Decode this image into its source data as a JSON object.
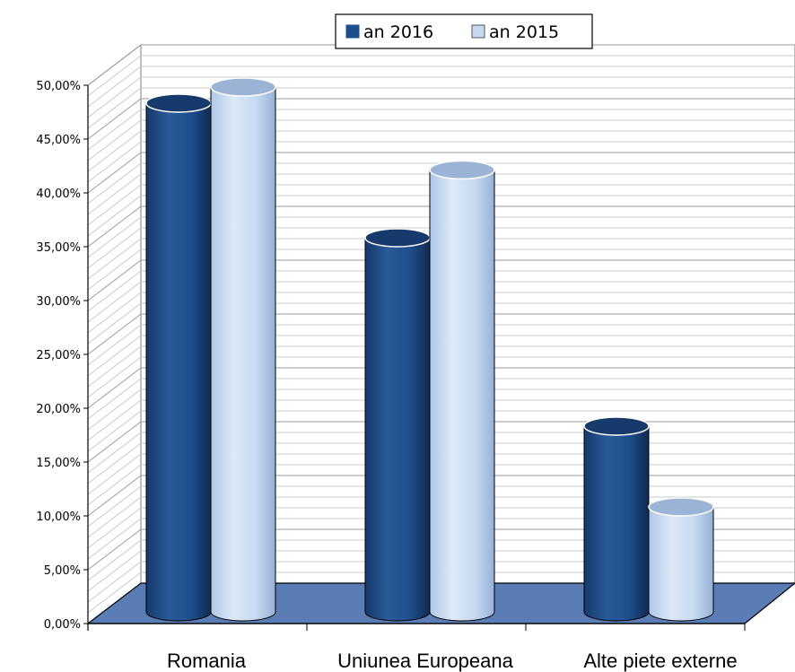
{
  "chart_data": {
    "type": "bar",
    "style": "3d-cylinder",
    "categories": [
      "Romania",
      "Uniunea Europeana",
      "Alte piete externe"
    ],
    "series": [
      {
        "name": "an 2016",
        "color": "#1f4e8c",
        "values": [
          48.0,
          35.5,
          18.0
        ]
      },
      {
        "name": "an 2015",
        "color": "#c6d9f1",
        "values": [
          49.5,
          41.8,
          10.5
        ]
      }
    ],
    "y_ticks": [
      "0,00%",
      "5,00%",
      "10,00%",
      "15,00%",
      "20,00%",
      "25,00%",
      "30,00%",
      "35,00%",
      "40,00%",
      "45,00%",
      "50,00%"
    ],
    "ylim": [
      0,
      50
    ],
    "grid": true,
    "legend_position": "top",
    "floor_color": "#5a7db5"
  }
}
